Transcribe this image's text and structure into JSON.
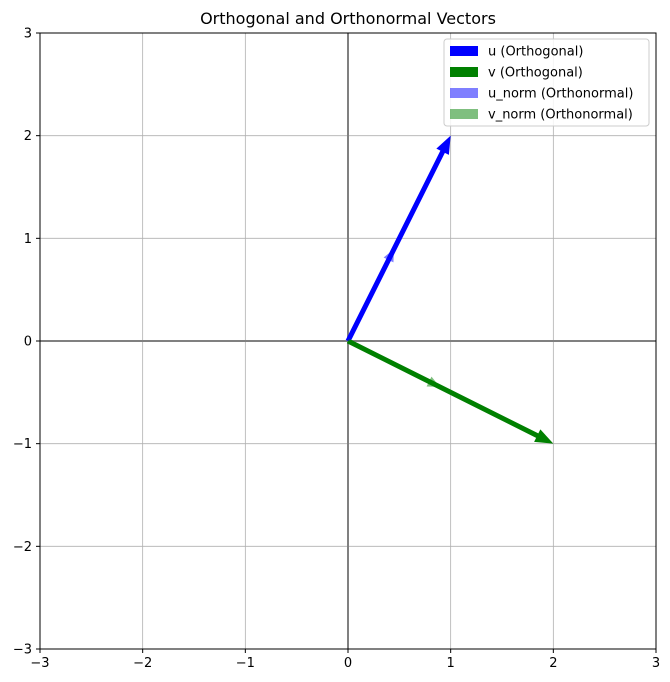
{
  "chart_data": {
    "type": "vector",
    "title": "Orthogonal and Orthonormal Vectors",
    "xlabel": "",
    "ylabel": "",
    "xlim": [
      -3,
      3
    ],
    "ylim": [
      -3,
      3
    ],
    "xticks": [
      -3,
      -2,
      -1,
      0,
      1,
      2,
      3
    ],
    "yticks": [
      -3,
      -2,
      -1,
      0,
      1,
      2,
      3
    ],
    "xtick_labels": [
      "−3",
      "−2",
      "−1",
      "0",
      "1",
      "2",
      "3"
    ],
    "ytick_labels": [
      "−3",
      "−2",
      "−1",
      "0",
      "1",
      "2",
      "3"
    ],
    "grid": true,
    "legend_position": "top-right",
    "series": [
      {
        "name": "u (Orthogonal)",
        "origin": [
          0,
          0
        ],
        "vector": [
          1,
          2
        ],
        "color": "#0000ff",
        "opacity": 1.0,
        "emphasis": "thick"
      },
      {
        "name": "v (Orthogonal)",
        "origin": [
          0,
          0
        ],
        "vector": [
          2,
          -1
        ],
        "color": "#008000",
        "opacity": 1.0,
        "emphasis": "thick"
      },
      {
        "name": "u_norm (Orthonormal)",
        "origin": [
          0,
          0
        ],
        "vector": [
          0.447,
          0.894
        ],
        "color": "#0000ff",
        "opacity": 0.5,
        "emphasis": "thin"
      },
      {
        "name": "v_norm (Orthonormal)",
        "origin": [
          0,
          0
        ],
        "vector": [
          0.894,
          -0.447
        ],
        "color": "#008000",
        "opacity": 0.5,
        "emphasis": "thin"
      }
    ]
  }
}
